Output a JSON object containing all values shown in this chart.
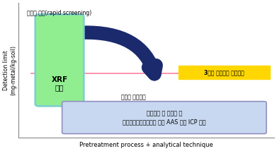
{
  "xlabel": "Pretreatment process + analytical technique",
  "ylabel": "Detection limit\n(mg-metal/kg-soil)",
  "top_label": "오염도 평가(rapid screening)",
  "xrf_label": "XRF\n분석",
  "standard_label": "3지역 토양오염 우려기준",
  "detail_label": "오염도 정밀분석",
  "box_label": "시료채취 및 전처리 후\n토양오염공정시험기준 적용 AAS 또는 ICP 분석",
  "bg_color": "#ffffff",
  "green_fill": "#90EE90",
  "green_border": "#7FD0D0",
  "arrow_color": "#1a2a6c",
  "pink_line_color": "#FF80A0",
  "yellow_fill": "#FFD700",
  "yellow_border": "#FFD700",
  "blue_box_fill": "#C8D8F0",
  "blue_box_border": "#9090C0",
  "axis_color": "#888888"
}
